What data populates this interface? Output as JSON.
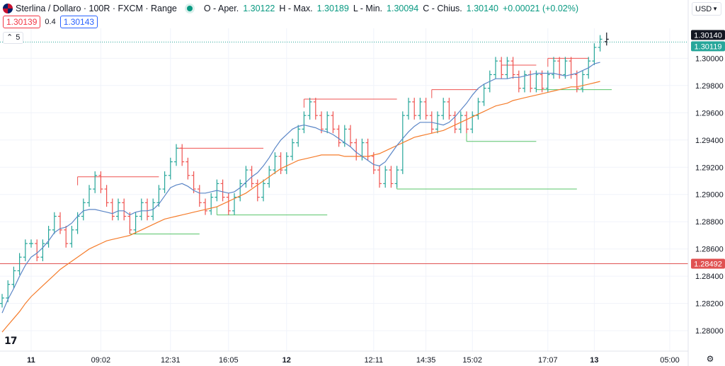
{
  "symbol": {
    "title": "Sterlina / Dollaro · 100R · FXCM · Range",
    "ohlc": [
      {
        "k": "O - Aper.",
        "v": "1.30122"
      },
      {
        "k": "H - Max.",
        "v": "1.30189"
      },
      {
        "k": "L - Min.",
        "v": "1.30094"
      },
      {
        "k": "C - Chius.",
        "v": "1.30140"
      }
    ],
    "change": "+0.00021 (+0.02%)",
    "bid": "1.30139",
    "spread": "0.4",
    "ask": "1.30143",
    "indicator_count": "5",
    "currency": "USD",
    "logo": "17"
  },
  "colors": {
    "up": "#26a69a",
    "down": "#ef5350",
    "ma_fast": "#5b86c7",
    "ma_slow": "#f57c2b",
    "level_line": "#e05252",
    "grid": "#f0f3fa",
    "last_price_bg": "#131722",
    "current_price_bg": "#26a69a",
    "level_bg": "#e05252",
    "support": "#58c46a",
    "resistance": "#ef5350"
  },
  "chart_data": {
    "type": "range bars (OHLC) with moving averages",
    "y_axis": {
      "ticks": [
        "1.30000",
        "1.29800",
        "1.29600",
        "1.29400",
        "1.29200",
        "1.29000",
        "1.28800",
        "1.28600",
        "1.28400",
        "1.28200",
        "1.28000"
      ],
      "range": [
        1.2785,
        1.3022
      ]
    },
    "x_axis": {
      "ticks": [
        {
          "label": "11",
          "bold": true,
          "bar": 5
        },
        {
          "label": "09:02",
          "bold": false,
          "bar": 17
        },
        {
          "label": "12:31",
          "bold": false,
          "bar": 29
        },
        {
          "label": "16:05",
          "bold": false,
          "bar": 39
        },
        {
          "label": "12",
          "bold": true,
          "bar": 49
        },
        {
          "label": "12:11",
          "bold": false,
          "bar": 64
        },
        {
          "label": "14:35",
          "bold": false,
          "bar": 73
        },
        {
          "label": "15:02",
          "bold": false,
          "bar": 81
        },
        {
          "label": "17:07",
          "bold": false,
          "bar": 94
        },
        {
          "label": "13",
          "bold": true,
          "bar": 102
        },
        {
          "label": "05:00",
          "bold": false,
          "bar": 115
        }
      ]
    },
    "price_labels": [
      {
        "label": "1.30140",
        "value": 1.3014,
        "kind": "last"
      },
      {
        "label": "1.30119",
        "value": 1.30119,
        "kind": "current"
      },
      {
        "label": "1.28492",
        "value": 1.28492,
        "kind": "level"
      }
    ],
    "horizontal_level": 1.28492,
    "closes": [
      1.2824,
      1.2834,
      1.2844,
      1.2854,
      1.2864,
      1.2864,
      1.2854,
      1.2864,
      1.2874,
      1.2884,
      1.2874,
      1.2864,
      1.2874,
      1.2884,
      1.2894,
      1.2904,
      1.2914,
      1.2904,
      1.2894,
      1.2884,
      1.2894,
      1.2884,
      1.2874,
      1.2884,
      1.2894,
      1.2884,
      1.2894,
      1.2904,
      1.2914,
      1.2924,
      1.2934,
      1.2924,
      1.2914,
      1.2904,
      1.2894,
      1.2888,
      1.2898,
      1.2908,
      1.2898,
      1.2888,
      1.2898,
      1.2908,
      1.2918,
      1.2908,
      1.2898,
      1.2908,
      1.2918,
      1.2928,
      1.2918,
      1.2928,
      1.2938,
      1.2948,
      1.2958,
      1.2968,
      1.2958,
      1.2948,
      1.2958,
      1.2948,
      1.2938,
      1.2948,
      1.2938,
      1.2928,
      1.2938,
      1.2928,
      1.2918,
      1.2908,
      1.2918,
      1.2908,
      1.2918,
      1.2958,
      1.2968,
      1.2958,
      1.2968,
      1.2958,
      1.2948,
      1.2958,
      1.2968,
      1.2958,
      1.2948,
      1.2958,
      1.2948,
      1.2958,
      1.2968,
      1.2978,
      1.2988,
      1.2998,
      1.2988,
      1.2998,
      1.2988,
      1.2978,
      1.2988,
      1.2978,
      1.2988,
      1.2978,
      1.2988,
      1.2998,
      1.2988,
      1.2998,
      1.2988,
      1.2978,
      1.2988,
      1.2998,
      1.3008,
      1.3014
    ],
    "ma_fast": [
      1.2813,
      1.2823,
      1.2831,
      1.284,
      1.2848,
      1.2854,
      1.2857,
      1.2861,
      1.2866,
      1.2872,
      1.2875,
      1.2876,
      1.2879,
      1.2884,
      1.2888,
      1.2889,
      1.2889,
      1.2888,
      1.2887,
      1.2886,
      1.2888,
      1.2888,
      1.2885,
      1.2887,
      1.2888,
      1.2888,
      1.2889,
      1.2893,
      1.2899,
      1.2905,
      1.2907,
      1.2908,
      1.2906,
      1.2903,
      1.2901,
      1.2901,
      1.2902,
      1.2903,
      1.2902,
      1.2901,
      1.2902,
      1.2905,
      1.2909,
      1.2913,
      1.2916,
      1.2921,
      1.2927,
      1.2934,
      1.294,
      1.2944,
      1.2948,
      1.295,
      1.2951,
      1.295,
      1.2949,
      1.2947,
      1.2946,
      1.2944,
      1.2941,
      1.2938,
      1.2935,
      1.2931,
      1.2928,
      1.2925,
      1.2922,
      1.2921,
      1.2924,
      1.293,
      1.2936,
      1.2941,
      1.2946,
      1.295,
      1.2953,
      1.2953,
      1.2953,
      1.2952,
      1.2951,
      1.2953,
      1.2957,
      1.2962,
      1.2967,
      1.2973,
      1.2978,
      1.2981,
      1.2983,
      1.2985,
      1.2985,
      1.2985,
      1.2986,
      1.2986,
      1.2987,
      1.2988,
      1.2989,
      1.2989,
      1.2989,
      1.2989,
      1.2988,
      1.2987,
      1.2988,
      1.2989,
      1.2991,
      1.2993,
      1.2996,
      1.2997
    ],
    "ma_slow": [
      1.2799,
      1.2804,
      1.2809,
      1.2814,
      1.282,
      1.2825,
      1.2829,
      1.2833,
      1.2837,
      1.2841,
      1.2845,
      1.2848,
      1.2851,
      1.2854,
      1.2857,
      1.286,
      1.2862,
      1.2864,
      1.2866,
      1.2867,
      1.2868,
      1.2869,
      1.287,
      1.2872,
      1.2874,
      1.2876,
      1.2878,
      1.288,
      1.2882,
      1.2883,
      1.2884,
      1.2885,
      1.2886,
      1.2887,
      1.2888,
      1.2889,
      1.289,
      1.2891,
      1.2893,
      1.2895,
      1.2897,
      1.2899,
      1.2901,
      1.2904,
      1.2907,
      1.291,
      1.2913,
      1.2916,
      1.2919,
      1.2921,
      1.2923,
      1.2925,
      1.2926,
      1.2927,
      1.2928,
      1.2929,
      1.2929,
      1.2929,
      1.2929,
      1.2928,
      1.2928,
      1.2928,
      1.2928,
      1.2928,
      1.2929,
      1.293,
      1.2932,
      1.2934,
      1.2936,
      1.2938,
      1.294,
      1.2942,
      1.2943,
      1.2944,
      1.2945,
      1.2946,
      1.2947,
      1.2949,
      1.2951,
      1.2953,
      1.2955,
      1.2957,
      1.2959,
      1.2961,
      1.2963,
      1.2965,
      1.2966,
      1.2967,
      1.2969,
      1.297,
      1.2971,
      1.2972,
      1.2973,
      1.2974,
      1.2975,
      1.2976,
      1.2977,
      1.2978,
      1.2979,
      1.2979,
      1.298,
      1.2981,
      1.2982,
      1.2983
    ],
    "resistance_levels": [
      {
        "price": 1.2913,
        "from_bar": 13,
        "to_bar": 27
      },
      {
        "price": 1.2934,
        "from_bar": 30,
        "to_bar": 45
      },
      {
        "price": 1.297,
        "from_bar": 52,
        "to_bar": 68
      },
      {
        "price": 1.2977,
        "from_bar": 74,
        "to_bar": 82
      },
      {
        "price": 1.2995,
        "from_bar": 86,
        "to_bar": 92
      },
      {
        "price": 1.3,
        "from_bar": 94,
        "to_bar": 101
      }
    ],
    "support_levels": [
      {
        "price": 1.2871,
        "from_bar": 22,
        "to_bar": 34
      },
      {
        "price": 1.2885,
        "from_bar": 37,
        "to_bar": 56
      },
      {
        "price": 1.2904,
        "from_bar": 68,
        "to_bar": 99
      },
      {
        "price": 1.2939,
        "from_bar": 80,
        "to_bar": 92
      },
      {
        "price": 1.2977,
        "from_bar": 92,
        "to_bar": 105
      }
    ]
  }
}
